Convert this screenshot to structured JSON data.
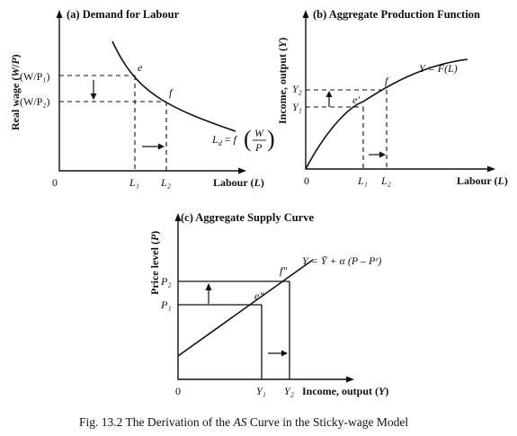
{
  "panel_a": {
    "title": "(a) Demand for Labour",
    "y_axis_label": "Real wage (W/P)",
    "x_axis_label": "Labour (L)",
    "origin": "0",
    "wage_1": "(W/P₁)",
    "wage_2": "(W/P₂)",
    "point_e": "e",
    "point_f": "f",
    "tick_l1": "L₁",
    "tick_l2": "L₂",
    "curve_label": "L_d = f (W/P)"
  },
  "panel_b": {
    "title": "(b) Aggregate Production Function",
    "y_axis_label": "Income, output (Y)",
    "x_axis_label": "Labour (L)",
    "origin": "0",
    "tick_y1": "Y₁",
    "tick_y2": "Y₂",
    "point_e": "e′",
    "point_f": "f",
    "tick_l1": "L₁",
    "tick_l2": "L₂",
    "curve_label": "Y = F(L)"
  },
  "panel_c": {
    "title": "(c) Aggregate Supply Curve",
    "y_axis_label": "Price level (P)",
    "x_axis_label": "Income, output (Y)",
    "origin": "0",
    "tick_p1": "P₁",
    "tick_p2": "P₂",
    "point_e": "e″",
    "point_f": "f″",
    "tick_y1": "Y₁",
    "tick_y2": "Y₂",
    "curve_label": "Y = Ȳ + α (P – Pᵉ)"
  },
  "caption": {
    "prefix": "Fig. 13.2 The Derivation of the ",
    "emphasis": "AS",
    "suffix": " Curve in the Sticky-wage Model"
  }
}
